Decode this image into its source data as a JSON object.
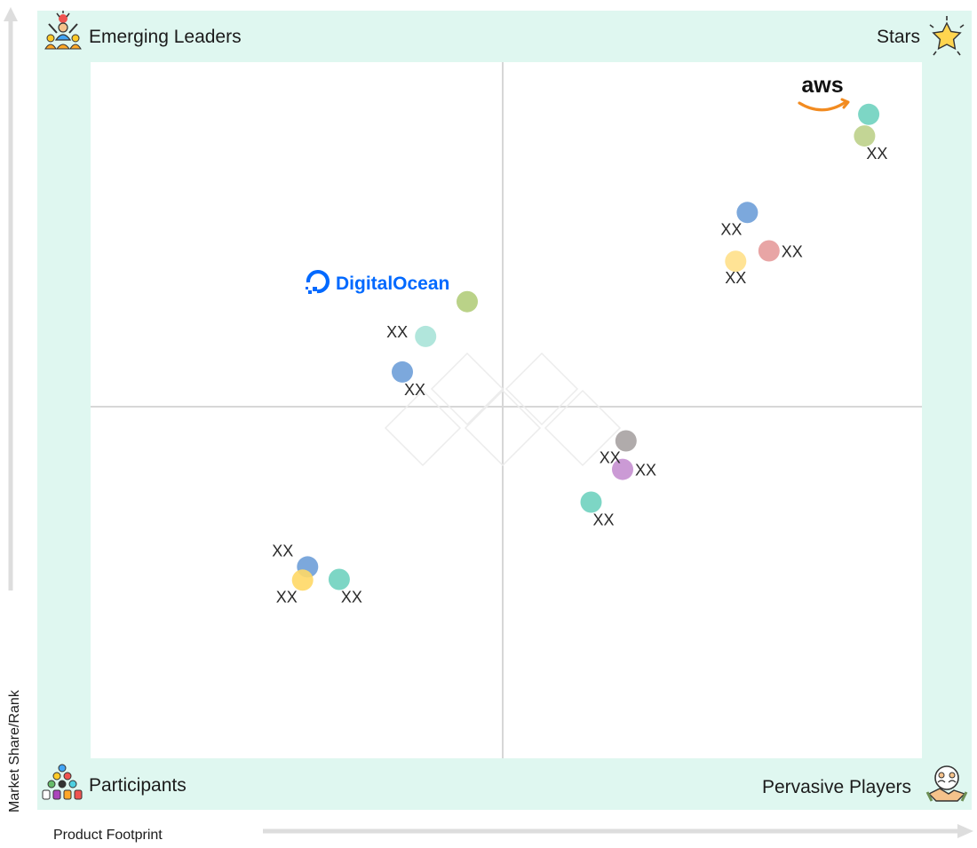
{
  "chart_data": {
    "type": "scatter",
    "xlabel": "Product Footprint",
    "ylabel": "Market Share/Rank",
    "xlim": [
      0,
      100
    ],
    "ylim": [
      0,
      100
    ],
    "grid": false,
    "quadrants": {
      "top_left": "Emerging Leaders",
      "top_right": "Stars",
      "bottom_left": "Participants",
      "bottom_right": "Pervasive Players"
    },
    "brand_labels": [
      "aws",
      "DigitalOcean"
    ],
    "points": [
      {
        "x": 93.6,
        "y": 92.5,
        "color": "#6fd2bf",
        "label": "aws",
        "label_pos": "above-left"
      },
      {
        "x": 93.1,
        "y": 89.4,
        "color": "#bcd08a",
        "label": "XX",
        "label_pos": "below-right"
      },
      {
        "x": 79.0,
        "y": 78.4,
        "color": "#6e9ed8",
        "label": "XX",
        "label_pos": "below-left"
      },
      {
        "x": 81.6,
        "y": 72.9,
        "color": "#e59b9b",
        "label": "XX",
        "label_pos": "right"
      },
      {
        "x": 77.6,
        "y": 71.4,
        "color": "#ffe08a",
        "label": "XX",
        "label_pos": "below"
      },
      {
        "x": 45.3,
        "y": 65.6,
        "color": "#b3cd7b",
        "label": "DigitalOcean",
        "label_pos": "above-left"
      },
      {
        "x": 40.3,
        "y": 60.6,
        "color": "#a9e3d8",
        "label": "XX",
        "label_pos": "left"
      },
      {
        "x": 37.5,
        "y": 55.5,
        "color": "#6e9ed8",
        "label": "XX",
        "label_pos": "below-right"
      },
      {
        "x": 64.4,
        "y": 45.6,
        "color": "#a7a2a2",
        "label": "XX",
        "label_pos": "below-left"
      },
      {
        "x": 64.0,
        "y": 41.5,
        "color": "#c58fd0",
        "label": "XX",
        "label_pos": "right"
      },
      {
        "x": 60.2,
        "y": 36.8,
        "color": "#6fd2bf",
        "label": "XX",
        "label_pos": "below-right"
      },
      {
        "x": 26.1,
        "y": 27.5,
        "color": "#6e9ed8",
        "label": "XX",
        "label_pos": "above-left"
      },
      {
        "x": 25.5,
        "y": 25.6,
        "color": "#ffd866",
        "label": "XX",
        "label_pos": "below-left"
      },
      {
        "x": 29.9,
        "y": 25.7,
        "color": "#6fd2bf",
        "label": "XX",
        "label_pos": "below-right"
      }
    ]
  },
  "colors": {
    "quadrant_background": "#dff7f0",
    "plot_background": "#ffffff",
    "divider": "#d7d7d7",
    "axis_arrow": "#dddddd",
    "aws_orange": "#f28b20",
    "digitalocean_blue": "#0069ff"
  },
  "icons": {
    "emerging_leaders": "leader-icon",
    "stars": "star-icon",
    "participants": "participants-icon",
    "pervasive_players": "handshake-icon"
  }
}
